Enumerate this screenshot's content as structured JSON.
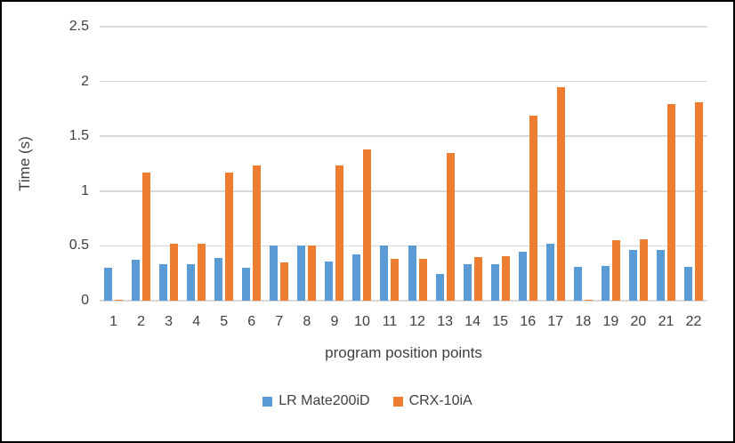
{
  "chart_data": {
    "type": "bar",
    "title": "",
    "x_title": "program position points",
    "y_title": "Time (s)",
    "categories": [
      "1",
      "2",
      "3",
      "4",
      "5",
      "6",
      "7",
      "8",
      "9",
      "10",
      "11",
      "12",
      "13",
      "14",
      "15",
      "16",
      "17",
      "18",
      "19",
      "20",
      "21",
      "22"
    ],
    "series": [
      {
        "name": "LR Mate200iD",
        "color": "#5B9BD5",
        "values": [
          0.3,
          0.37,
          0.33,
          0.33,
          0.39,
          0.3,
          0.5,
          0.5,
          0.36,
          0.42,
          0.5,
          0.5,
          0.24,
          0.33,
          0.33,
          0.45,
          0.52,
          0.31,
          0.32,
          0.46,
          0.46,
          0.31
        ]
      },
      {
        "name": "CRX-10iA",
        "color": "#ED7D31",
        "values": [
          0.01,
          1.17,
          0.52,
          0.52,
          1.17,
          1.23,
          0.35,
          0.5,
          1.23,
          1.38,
          0.38,
          0.38,
          1.35,
          0.4,
          0.41,
          1.69,
          1.95,
          0.01,
          0.55,
          0.56,
          1.79,
          1.81
        ]
      }
    ],
    "y_ticks": [
      "0",
      "0.5",
      "1",
      "1.5",
      "2",
      "2.5"
    ],
    "ylim": [
      0,
      2.5
    ],
    "grid": true,
    "gridline_color": "#D9D9D9",
    "legend_position": "bottom",
    "border_color": "#000000"
  }
}
